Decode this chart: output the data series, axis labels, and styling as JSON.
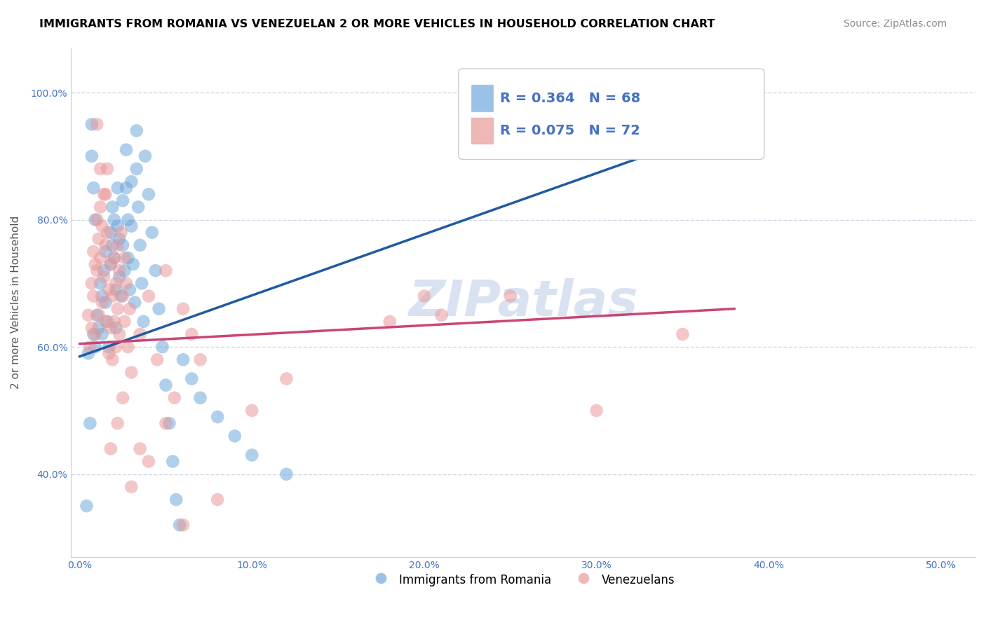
{
  "title": "IMMIGRANTS FROM ROMANIA VS VENEZUELAN 2 OR MORE VEHICLES IN HOUSEHOLD CORRELATION CHART",
  "source": "Source: ZipAtlas.com",
  "ylabel_label": "2 or more Vehicles in Household",
  "legend_labels": [
    "Immigrants from Romania",
    "Venezuelans"
  ],
  "legend_r_n": [
    {
      "R": "0.364",
      "N": "68"
    },
    {
      "R": "0.075",
      "N": "72"
    }
  ],
  "blue_color": "#6fa8dc",
  "pink_color": "#ea9999",
  "blue_line_color": "#1f5ba1",
  "pink_line_color": "#cc4477",
  "legend_text_color": "#4472c4",
  "watermark_color": "#c0d0e8",
  "background_color": "#ffffff",
  "grid_color": "#d0d8e8",
  "title_color": "#000000",
  "source_color": "#888888",
  "blue_scatter": [
    [
      0.008,
      0.62
    ],
    [
      0.009,
      0.6
    ],
    [
      0.01,
      0.65
    ],
    [
      0.011,
      0.63
    ],
    [
      0.012,
      0.7
    ],
    [
      0.013,
      0.68
    ],
    [
      0.013,
      0.62
    ],
    [
      0.014,
      0.72
    ],
    [
      0.015,
      0.75
    ],
    [
      0.015,
      0.67
    ],
    [
      0.016,
      0.64
    ],
    [
      0.017,
      0.6
    ],
    [
      0.018,
      0.78
    ],
    [
      0.018,
      0.73
    ],
    [
      0.019,
      0.82
    ],
    [
      0.019,
      0.76
    ],
    [
      0.02,
      0.8
    ],
    [
      0.02,
      0.74
    ],
    [
      0.021,
      0.69
    ],
    [
      0.021,
      0.63
    ],
    [
      0.022,
      0.85
    ],
    [
      0.022,
      0.79
    ],
    [
      0.023,
      0.77
    ],
    [
      0.023,
      0.71
    ],
    [
      0.024,
      0.68
    ],
    [
      0.025,
      0.83
    ],
    [
      0.025,
      0.76
    ],
    [
      0.026,
      0.72
    ],
    [
      0.027,
      0.91
    ],
    [
      0.027,
      0.85
    ],
    [
      0.028,
      0.8
    ],
    [
      0.028,
      0.74
    ],
    [
      0.029,
      0.69
    ],
    [
      0.03,
      0.86
    ],
    [
      0.03,
      0.79
    ],
    [
      0.031,
      0.73
    ],
    [
      0.032,
      0.67
    ],
    [
      0.033,
      0.94
    ],
    [
      0.033,
      0.88
    ],
    [
      0.034,
      0.82
    ],
    [
      0.035,
      0.76
    ],
    [
      0.036,
      0.7
    ],
    [
      0.037,
      0.64
    ],
    [
      0.038,
      0.9
    ],
    [
      0.04,
      0.84
    ],
    [
      0.042,
      0.78
    ],
    [
      0.044,
      0.72
    ],
    [
      0.046,
      0.66
    ],
    [
      0.048,
      0.6
    ],
    [
      0.05,
      0.54
    ],
    [
      0.052,
      0.48
    ],
    [
      0.054,
      0.42
    ],
    [
      0.056,
      0.36
    ],
    [
      0.058,
      0.32
    ],
    [
      0.005,
      0.59
    ],
    [
      0.006,
      0.48
    ],
    [
      0.007,
      0.95
    ],
    [
      0.007,
      0.9
    ],
    [
      0.008,
      0.85
    ],
    [
      0.009,
      0.8
    ],
    [
      0.06,
      0.58
    ],
    [
      0.065,
      0.55
    ],
    [
      0.07,
      0.52
    ],
    [
      0.08,
      0.49
    ],
    [
      0.09,
      0.46
    ],
    [
      0.1,
      0.43
    ],
    [
      0.12,
      0.4
    ],
    [
      0.004,
      0.35
    ]
  ],
  "pink_scatter": [
    [
      0.005,
      0.65
    ],
    [
      0.006,
      0.6
    ],
    [
      0.007,
      0.7
    ],
    [
      0.007,
      0.63
    ],
    [
      0.008,
      0.75
    ],
    [
      0.008,
      0.68
    ],
    [
      0.009,
      0.73
    ],
    [
      0.009,
      0.62
    ],
    [
      0.01,
      0.8
    ],
    [
      0.01,
      0.72
    ],
    [
      0.011,
      0.77
    ],
    [
      0.011,
      0.65
    ],
    [
      0.012,
      0.82
    ],
    [
      0.012,
      0.74
    ],
    [
      0.013,
      0.79
    ],
    [
      0.013,
      0.67
    ],
    [
      0.014,
      0.84
    ],
    [
      0.014,
      0.71
    ],
    [
      0.015,
      0.76
    ],
    [
      0.015,
      0.64
    ],
    [
      0.016,
      0.88
    ],
    [
      0.016,
      0.78
    ],
    [
      0.017,
      0.69
    ],
    [
      0.017,
      0.59
    ],
    [
      0.018,
      0.73
    ],
    [
      0.018,
      0.63
    ],
    [
      0.019,
      0.68
    ],
    [
      0.019,
      0.58
    ],
    [
      0.02,
      0.74
    ],
    [
      0.02,
      0.64
    ],
    [
      0.021,
      0.7
    ],
    [
      0.021,
      0.6
    ],
    [
      0.022,
      0.76
    ],
    [
      0.022,
      0.66
    ],
    [
      0.023,
      0.72
    ],
    [
      0.023,
      0.62
    ],
    [
      0.024,
      0.78
    ],
    [
      0.025,
      0.68
    ],
    [
      0.026,
      0.74
    ],
    [
      0.026,
      0.64
    ],
    [
      0.027,
      0.7
    ],
    [
      0.028,
      0.6
    ],
    [
      0.029,
      0.66
    ],
    [
      0.03,
      0.56
    ],
    [
      0.035,
      0.62
    ],
    [
      0.04,
      0.68
    ],
    [
      0.045,
      0.58
    ],
    [
      0.05,
      0.72
    ],
    [
      0.055,
      0.52
    ],
    [
      0.06,
      0.66
    ],
    [
      0.065,
      0.62
    ],
    [
      0.07,
      0.58
    ],
    [
      0.01,
      0.95
    ],
    [
      0.012,
      0.88
    ],
    [
      0.015,
      0.84
    ],
    [
      0.018,
      0.44
    ],
    [
      0.022,
      0.48
    ],
    [
      0.025,
      0.52
    ],
    [
      0.03,
      0.38
    ],
    [
      0.035,
      0.44
    ],
    [
      0.04,
      0.42
    ],
    [
      0.05,
      0.48
    ],
    [
      0.06,
      0.32
    ],
    [
      0.08,
      0.36
    ],
    [
      0.1,
      0.5
    ],
    [
      0.12,
      0.55
    ],
    [
      0.18,
      0.64
    ],
    [
      0.2,
      0.68
    ],
    [
      0.21,
      0.65
    ],
    [
      0.25,
      0.68
    ],
    [
      0.3,
      0.5
    ],
    [
      0.35,
      0.62
    ]
  ],
  "xlim": [
    -0.005,
    0.52
  ],
  "ylim": [
    0.27,
    1.07
  ],
  "blue_trendline": [
    [
      0.0,
      0.585
    ],
    [
      0.38,
      0.95
    ]
  ],
  "pink_trendline": [
    [
      0.0,
      0.605
    ],
    [
      0.38,
      0.66
    ]
  ]
}
